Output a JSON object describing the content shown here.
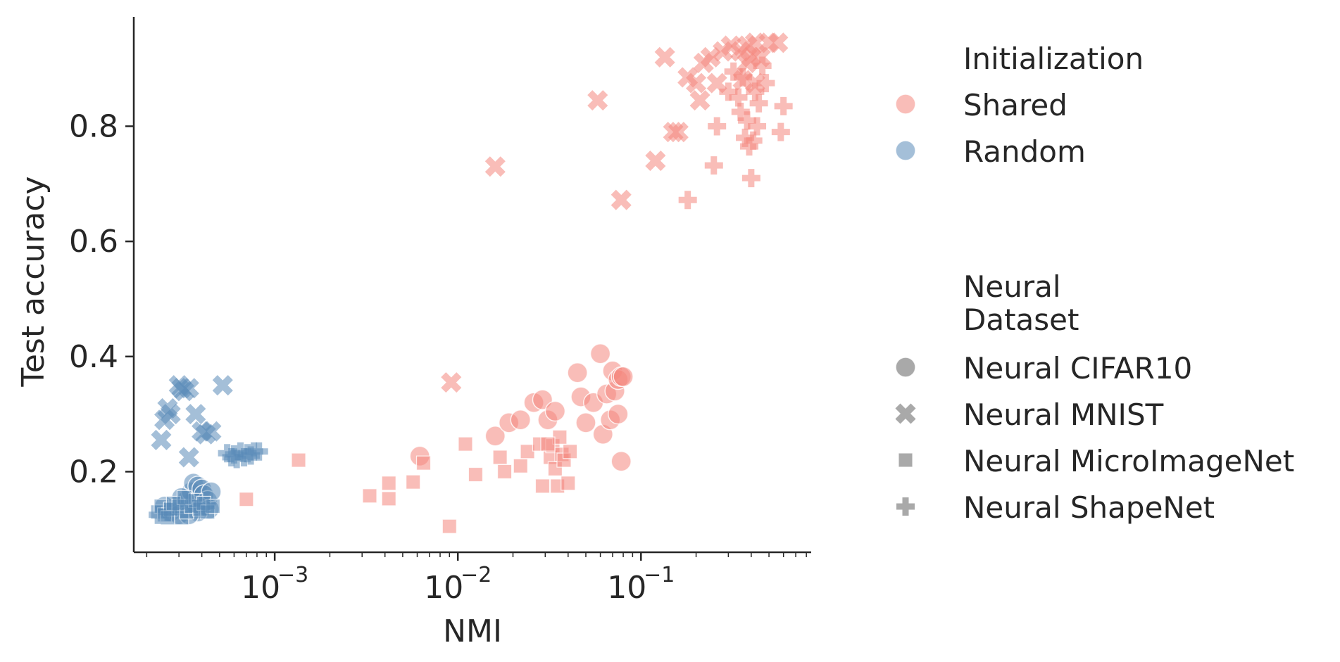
{
  "chart_data": {
    "type": "scatter",
    "xlabel": "NMI",
    "ylabel": "Test accuracy",
    "x_scale": "log",
    "xlim": [
      0.00017,
      0.85
    ],
    "ylim": [
      0.06,
      0.99
    ],
    "x_ticks": [
      {
        "value": 0.001,
        "base": "10",
        "exp": "−3"
      },
      {
        "value": 0.01,
        "base": "10",
        "exp": "−2"
      },
      {
        "value": 0.1,
        "base": "10",
        "exp": "−1"
      }
    ],
    "y_ticks": [
      {
        "value": 0.2,
        "label": "0.2"
      },
      {
        "value": 0.4,
        "label": "0.4"
      },
      {
        "value": 0.6,
        "label": "0.6"
      },
      {
        "value": 0.8,
        "label": "0.8"
      }
    ],
    "grid": false,
    "legend_position": "right",
    "colors": {
      "Shared": "#f4877d",
      "Random": "#5a8ab8",
      "legend_gray": "#9a9a9a"
    },
    "legend": {
      "hue_title": "Initialization",
      "hue_entries": [
        {
          "label": "Shared",
          "group": "Shared"
        },
        {
          "label": "Random",
          "group": "Random"
        }
      ],
      "style_title": [
        "Neural",
        "Dataset"
      ],
      "style_entries": [
        {
          "label": "Neural CIFAR10",
          "marker": "circle"
        },
        {
          "label": "Neural MNIST",
          "marker": "x"
        },
        {
          "label": "Neural MicroImageNet",
          "marker": "square"
        },
        {
          "label": "Neural ShapeNet",
          "marker": "plus"
        }
      ]
    },
    "series": [
      {
        "group": "Shared",
        "dataset": "Neural CIFAR10",
        "marker": "circle",
        "points": [
          [
            0.0062,
            0.227
          ],
          [
            0.016,
            0.262
          ],
          [
            0.019,
            0.285
          ],
          [
            0.022,
            0.29
          ],
          [
            0.026,
            0.32
          ],
          [
            0.029,
            0.325
          ],
          [
            0.031,
            0.29
          ],
          [
            0.034,
            0.305
          ],
          [
            0.045,
            0.372
          ],
          [
            0.047,
            0.33
          ],
          [
            0.05,
            0.285
          ],
          [
            0.055,
            0.32
          ],
          [
            0.06,
            0.405
          ],
          [
            0.062,
            0.265
          ],
          [
            0.065,
            0.335
          ],
          [
            0.068,
            0.29
          ],
          [
            0.07,
            0.375
          ],
          [
            0.072,
            0.34
          ],
          [
            0.075,
            0.36
          ],
          [
            0.078,
            0.365
          ],
          [
            0.075,
            0.3
          ],
          [
            0.078,
            0.218
          ],
          [
            0.08,
            0.365
          ]
        ]
      },
      {
        "group": "Shared",
        "dataset": "Neural MNIST",
        "marker": "x",
        "points": [
          [
            0.0092,
            0.355
          ],
          [
            0.016,
            0.73
          ],
          [
            0.058,
            0.845
          ],
          [
            0.078,
            0.672
          ],
          [
            0.12,
            0.74
          ],
          [
            0.135,
            0.92
          ],
          [
            0.15,
            0.79
          ],
          [
            0.16,
            0.79
          ],
          [
            0.18,
            0.885
          ],
          [
            0.2,
            0.875
          ],
          [
            0.21,
            0.845
          ],
          [
            0.22,
            0.91
          ],
          [
            0.24,
            0.92
          ],
          [
            0.26,
            0.875
          ],
          [
            0.28,
            0.93
          ],
          [
            0.31,
            0.94
          ],
          [
            0.35,
            0.93
          ],
          [
            0.38,
            0.91
          ],
          [
            0.4,
            0.92
          ],
          [
            0.42,
            0.945
          ],
          [
            0.45,
            0.92
          ],
          [
            0.5,
            0.945
          ],
          [
            0.56,
            0.945
          ],
          [
            0.36,
            0.88
          ],
          [
            0.42,
            0.875
          ],
          [
            0.38,
            0.94
          ]
        ]
      },
      {
        "group": "Shared",
        "dataset": "Neural MicroImageNet",
        "marker": "square",
        "points": [
          [
            0.0007,
            0.152
          ],
          [
            0.00135,
            0.22
          ],
          [
            0.0033,
            0.158
          ],
          [
            0.0042,
            0.18
          ],
          [
            0.0042,
            0.153
          ],
          [
            0.0057,
            0.182
          ],
          [
            0.0065,
            0.215
          ],
          [
            0.009,
            0.105
          ],
          [
            0.011,
            0.248
          ],
          [
            0.0125,
            0.195
          ],
          [
            0.017,
            0.225
          ],
          [
            0.018,
            0.2
          ],
          [
            0.022,
            0.21
          ],
          [
            0.024,
            0.235
          ],
          [
            0.028,
            0.248
          ],
          [
            0.029,
            0.175
          ],
          [
            0.032,
            0.225
          ],
          [
            0.033,
            0.245
          ],
          [
            0.034,
            0.205
          ],
          [
            0.035,
            0.175
          ],
          [
            0.036,
            0.26
          ],
          [
            0.037,
            0.23
          ],
          [
            0.038,
            0.22
          ],
          [
            0.04,
            0.18
          ],
          [
            0.041,
            0.235
          ],
          [
            0.031,
            0.248
          ]
        ]
      },
      {
        "group": "Shared",
        "dataset": "Neural ShapeNet",
        "marker": "plus",
        "points": [
          [
            0.18,
            0.672
          ],
          [
            0.25,
            0.732
          ],
          [
            0.26,
            0.8
          ],
          [
            0.3,
            0.86
          ],
          [
            0.32,
            0.895
          ],
          [
            0.34,
            0.85
          ],
          [
            0.36,
            0.885
          ],
          [
            0.38,
            0.81
          ],
          [
            0.39,
            0.765
          ],
          [
            0.4,
            0.71
          ],
          [
            0.41,
            0.775
          ],
          [
            0.42,
            0.86
          ],
          [
            0.44,
            0.84
          ],
          [
            0.46,
            0.905
          ],
          [
            0.48,
            0.875
          ],
          [
            0.6,
            0.835
          ],
          [
            0.58,
            0.79
          ],
          [
            0.35,
            0.825
          ],
          [
            0.43,
            0.8
          ],
          [
            0.37,
            0.78
          ]
        ]
      },
      {
        "group": "Random",
        "dataset": "Neural CIFAR10",
        "marker": "circle",
        "points": [
          [
            0.00025,
            0.14
          ],
          [
            0.00027,
            0.13
          ],
          [
            0.0003,
            0.125
          ],
          [
            0.00033,
            0.15
          ],
          [
            0.00035,
            0.165
          ],
          [
            0.00036,
            0.18
          ],
          [
            0.00038,
            0.175
          ],
          [
            0.0004,
            0.17
          ],
          [
            0.00041,
            0.16
          ],
          [
            0.00043,
            0.15
          ],
          [
            0.00044,
            0.135
          ],
          [
            0.00038,
            0.13
          ],
          [
            0.00034,
            0.125
          ],
          [
            0.00031,
            0.155
          ],
          [
            0.00045,
            0.165
          ]
        ]
      },
      {
        "group": "Random",
        "dataset": "Neural MNIST",
        "marker": "x",
        "points": [
          [
            0.00024,
            0.255
          ],
          [
            0.00025,
            0.29
          ],
          [
            0.00026,
            0.31
          ],
          [
            0.00027,
            0.3
          ],
          [
            0.0003,
            0.35
          ],
          [
            0.00032,
            0.34
          ],
          [
            0.00034,
            0.345
          ],
          [
            0.00034,
            0.225
          ],
          [
            0.00037,
            0.3
          ],
          [
            0.0004,
            0.27
          ],
          [
            0.00042,
            0.265
          ],
          [
            0.00045,
            0.27
          ],
          [
            0.00052,
            0.35
          ],
          [
            0.00031,
            0.345
          ]
        ]
      },
      {
        "group": "Random",
        "dataset": "Neural MicroImageNet",
        "marker": "square",
        "points": [
          [
            0.00023,
            0.13
          ],
          [
            0.00024,
            0.14
          ],
          [
            0.00025,
            0.125
          ],
          [
            0.00027,
            0.135
          ],
          [
            0.00028,
            0.145
          ],
          [
            0.0003,
            0.14
          ],
          [
            0.00031,
            0.12
          ],
          [
            0.00033,
            0.13
          ],
          [
            0.00035,
            0.14
          ],
          [
            0.00037,
            0.15
          ],
          [
            0.00039,
            0.135
          ],
          [
            0.00041,
            0.145
          ],
          [
            0.00043,
            0.13
          ],
          [
            0.00046,
            0.14
          ],
          [
            0.00026,
            0.12
          ],
          [
            0.00032,
            0.155
          ]
        ]
      },
      {
        "group": "Random",
        "dataset": "Neural ShapeNet",
        "marker": "plus",
        "points": [
          [
            0.00023,
            0.125
          ],
          [
            0.00026,
            0.13
          ],
          [
            0.00029,
            0.14
          ],
          [
            0.00034,
            0.145
          ],
          [
            0.00038,
            0.135
          ],
          [
            0.00042,
            0.14
          ],
          [
            0.00055,
            0.232
          ],
          [
            0.00058,
            0.225
          ],
          [
            0.0006,
            0.23
          ],
          [
            0.00062,
            0.222
          ],
          [
            0.00065,
            0.235
          ],
          [
            0.00068,
            0.225
          ],
          [
            0.00071,
            0.232
          ],
          [
            0.00074,
            0.228
          ],
          [
            0.00077,
            0.235
          ],
          [
            0.00082,
            0.235
          ]
        ]
      }
    ]
  }
}
